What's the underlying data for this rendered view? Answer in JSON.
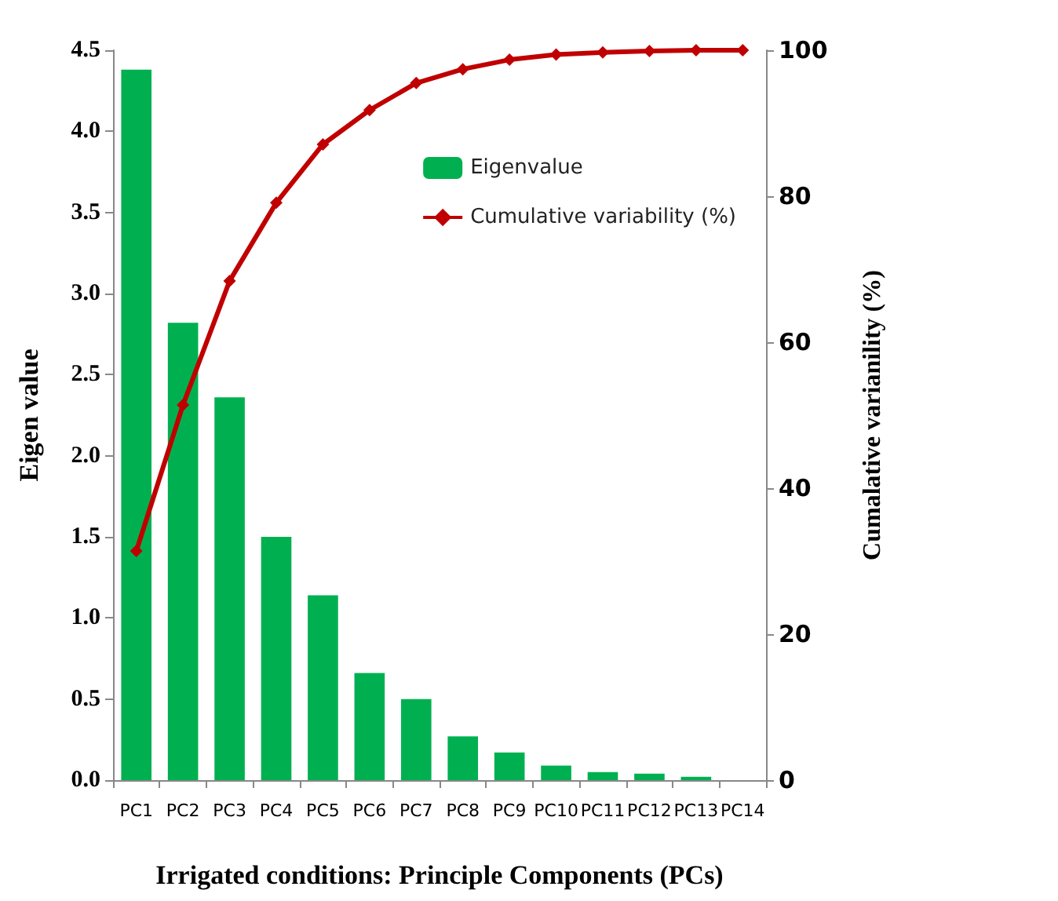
{
  "chart_data": {
    "type": "bar",
    "xlabel": "Irrigated conditions: Principle Components (PCs)",
    "ylabel": "Eigen value",
    "y2label": "Cumalative varianility (%)",
    "categories": [
      "PC1",
      "PC2",
      "PC3",
      "PC4",
      "PC5",
      "PC6",
      "PC7",
      "PC8",
      "PC9",
      "PC10",
      "PC11",
      "PC12",
      "PC13",
      "PC14"
    ],
    "series": [
      {
        "name": "Eigenvalue",
        "color": "#00b050",
        "values": [
          4.38,
          2.82,
          2.36,
          1.5,
          1.14,
          0.66,
          0.5,
          0.27,
          0.17,
          0.09,
          0.05,
          0.04,
          0.02,
          0
        ]
      },
      {
        "name": "Cumulative variability (%)",
        "type": "line",
        "axis": "y2",
        "color": "#c00000",
        "marker": "diamond",
        "values": [
          31.4,
          51.4,
          68.4,
          79.1,
          87.1,
          91.8,
          95.5,
          97.4,
          98.7,
          99.4,
          99.7,
          99.9,
          100,
          100
        ]
      }
    ],
    "ylim": [
      0,
      4.5
    ],
    "yticks": [
      {
        "value": 0,
        "label": "0.0"
      },
      0.5,
      {
        "value": 1,
        "label": "1.0"
      },
      1.5,
      {
        "value": 2,
        "label": "2.0"
      },
      2.5,
      {
        "value": 3,
        "label": "3.0"
      },
      3.5,
      {
        "value": 4,
        "label": "4.0"
      },
      4.5
    ],
    "y2lim": [
      0,
      100
    ],
    "y2ticks": [
      0,
      20,
      40,
      60,
      80,
      100
    ],
    "grid": false,
    "legend": "top right"
  }
}
